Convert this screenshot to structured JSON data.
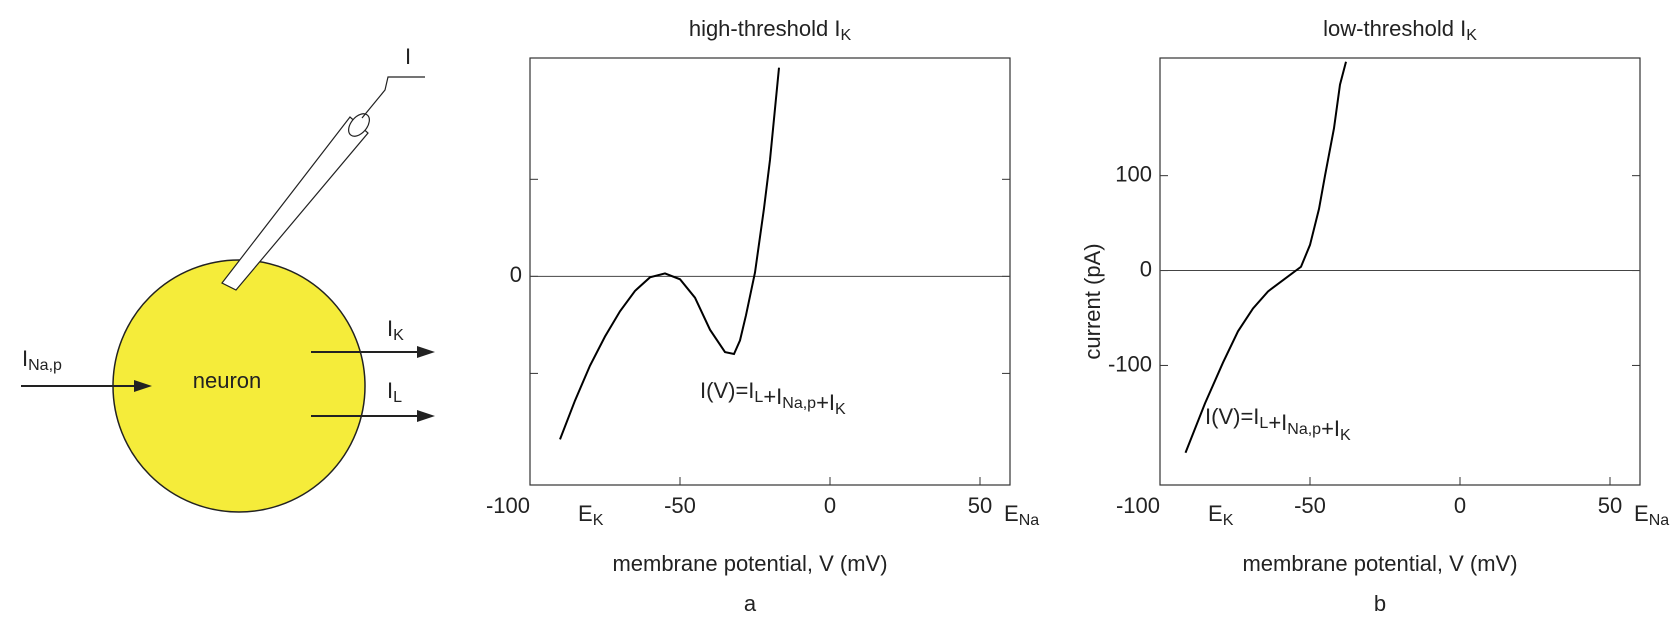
{
  "diagram": {
    "cell_label": "neuron",
    "electrode_label": "I",
    "currents": [
      {
        "text": "I",
        "sub": "Na,p"
      },
      {
        "text": "I",
        "sub": "K"
      },
      {
        "text": "I",
        "sub": "L"
      }
    ]
  },
  "chart_data": [
    {
      "type": "line",
      "title": {
        "text": "high-threshold I",
        "sub": "K"
      },
      "panel_label": "a",
      "xlabel": "membrane potential, V (mV)",
      "x": [
        -90,
        -85,
        -80,
        -75,
        -70,
        -65,
        -60,
        -55,
        -50,
        -45,
        -40,
        -35,
        -32,
        -30,
        -28,
        -25,
        -22,
        -20,
        -17
      ],
      "values": [
        -168,
        -128,
        -92,
        -62,
        -36,
        -15,
        -1,
        3,
        -3,
        -22,
        -55,
        -78,
        -80,
        -66,
        -40,
        4,
        70,
        120,
        215
      ],
      "color": "#000000",
      "xlim": [
        -100,
        60
      ],
      "xticks": [
        -100,
        -50,
        0,
        50
      ],
      "ylim": [
        -215,
        225
      ],
      "yticks": [
        0
      ],
      "yminor": [
        -100,
        100
      ],
      "annotations": [
        {
          "text": "E",
          "sub": "K",
          "x": -80
        },
        {
          "text": "E",
          "sub": "Na",
          "x": 60
        }
      ],
      "formula": [
        {
          "text": "I(V)=I",
          "sub": "L"
        },
        {
          "text": "+I",
          "sub": "Na,p"
        },
        {
          "text": "+I",
          "sub": "K"
        }
      ]
    },
    {
      "type": "line",
      "title": {
        "text": "low-threshold I",
        "sub": "K"
      },
      "panel_label": "b",
      "xlabel": "membrane potential, V (mV)",
      "ylabel": "current  (pA)",
      "x": [
        -91.5,
        -85,
        -79,
        -74,
        -69,
        -64,
        -58.5,
        -53,
        -50,
        -47,
        -45,
        -42,
        -40,
        -38
      ],
      "values": [
        -192,
        -140,
        -97,
        -64,
        -40,
        -22,
        -9,
        4,
        27,
        65,
        100,
        150,
        196,
        220
      ],
      "color": "#000000",
      "xlim": [
        -100,
        60
      ],
      "xticks": [
        -100,
        -50,
        0,
        50
      ],
      "ylim": [
        -226,
        224
      ],
      "yticks": [
        -100,
        0,
        100
      ],
      "yminor": [],
      "annotations": [
        {
          "text": "E",
          "sub": "K",
          "x": -80
        },
        {
          "text": "E",
          "sub": "Na",
          "x": 60
        }
      ],
      "formula": [
        {
          "text": "I(V)=I",
          "sub": "L"
        },
        {
          "text": "+I",
          "sub": "Na,p"
        },
        {
          "text": "+I",
          "sub": "K"
        }
      ]
    }
  ]
}
